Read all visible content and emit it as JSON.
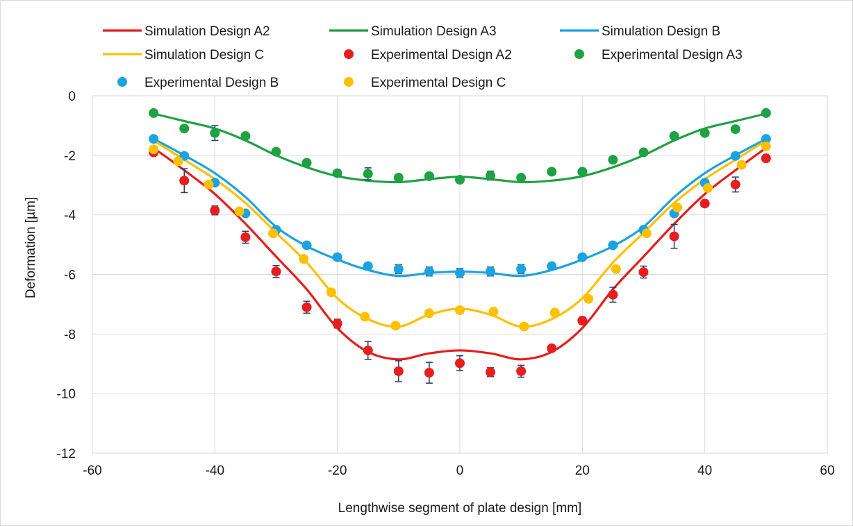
{
  "chart_data": {
    "type": "line",
    "xlabel": "Lengthwise segment of plate design [mm]",
    "ylabel": "Deformation [µm]",
    "xlim": [
      -60,
      60
    ],
    "ylim": [
      -12,
      0
    ],
    "x_ticks": [
      -60,
      -40,
      -20,
      0,
      20,
      40,
      60
    ],
    "y_ticks": [
      0,
      -2,
      -4,
      -6,
      -8,
      -10,
      -12
    ],
    "grid": true,
    "legend_position": "top",
    "series": [
      {
        "name": "Simulation Design A2",
        "kind": "line",
        "color": "#e81d1d",
        "x": [
          -50,
          -45,
          -40,
          -35,
          -30,
          -25,
          -20,
          -15,
          -10,
          -5,
          0,
          5,
          10,
          15,
          20,
          25,
          30,
          35,
          40,
          45,
          50
        ],
        "y": [
          -1.75,
          -2.5,
          -3.3,
          -4.3,
          -5.4,
          -6.5,
          -7.8,
          -8.6,
          -8.85,
          -8.65,
          -8.55,
          -8.65,
          -8.85,
          -8.6,
          -7.8,
          -6.5,
          -5.4,
          -4.3,
          -3.3,
          -2.5,
          -1.75
        ]
      },
      {
        "name": "Simulation Design A3",
        "kind": "line",
        "color": "#1fa144",
        "x": [
          -50,
          -45,
          -40,
          -35,
          -30,
          -25,
          -20,
          -15,
          -10,
          -5,
          0,
          5,
          10,
          15,
          20,
          25,
          30,
          35,
          40,
          45,
          50
        ],
        "y": [
          -0.6,
          -0.85,
          -1.1,
          -1.5,
          -2.0,
          -2.4,
          -2.7,
          -2.85,
          -2.9,
          -2.8,
          -2.72,
          -2.8,
          -2.9,
          -2.85,
          -2.7,
          -2.4,
          -2.0,
          -1.5,
          -1.1,
          -0.85,
          -0.6
        ]
      },
      {
        "name": "Simulation Design B",
        "kind": "line",
        "color": "#1aa3e0",
        "x": [
          -50,
          -45,
          -40,
          -35,
          -30,
          -25,
          -20,
          -15,
          -10,
          -5,
          0,
          5,
          10,
          15,
          20,
          25,
          30,
          35,
          40,
          45,
          50
        ],
        "y": [
          -1.45,
          -2.0,
          -2.6,
          -3.4,
          -4.4,
          -5.05,
          -5.5,
          -5.85,
          -6.05,
          -5.95,
          -5.9,
          -5.95,
          -6.05,
          -5.85,
          -5.5,
          -5.05,
          -4.4,
          -3.4,
          -2.6,
          -2.0,
          -1.45
        ]
      },
      {
        "name": "Simulation Design C",
        "kind": "line",
        "color": "#ffc000",
        "x": [
          -50,
          -45,
          -40,
          -35,
          -30,
          -25,
          -20,
          -15,
          -10,
          -5,
          0,
          5,
          10,
          15,
          20,
          25,
          30,
          35,
          40,
          45,
          50
        ],
        "y": [
          -1.5,
          -2.15,
          -2.8,
          -3.6,
          -4.6,
          -5.6,
          -6.8,
          -7.5,
          -7.75,
          -7.35,
          -7.15,
          -7.35,
          -7.75,
          -7.5,
          -6.8,
          -5.6,
          -4.6,
          -3.6,
          -2.8,
          -2.15,
          -1.5
        ]
      },
      {
        "name": "Experimental Design A2",
        "kind": "scatter",
        "color": "#e81d1d",
        "x": [
          -50,
          -45,
          -40,
          -35,
          -30,
          -25,
          -20,
          -15,
          -10,
          -5,
          0,
          5,
          10,
          15,
          20,
          25,
          30,
          35,
          40,
          45,
          50
        ],
        "y": [
          -1.9,
          -2.85,
          -3.85,
          -4.75,
          -5.9,
          -7.1,
          -7.65,
          -8.55,
          -9.25,
          -9.3,
          -8.98,
          -9.28,
          -9.25,
          -8.48,
          -7.55,
          -6.68,
          -5.92,
          -4.72,
          -3.62,
          -2.98,
          -2.1
        ],
        "err": [
          0.1,
          0.4,
          0.15,
          0.2,
          0.2,
          0.2,
          0.15,
          0.3,
          0.35,
          0.35,
          0.25,
          0.15,
          0.2,
          0.1,
          0.12,
          0.25,
          0.2,
          0.4,
          0.1,
          0.25,
          0.1
        ]
      },
      {
        "name": "Experimental Design A3",
        "kind": "scatter",
        "color": "#1fa144",
        "x": [
          -50,
          -45,
          -40,
          -35,
          -30,
          -25,
          -20,
          -15,
          -10,
          -5,
          0,
          5,
          10,
          15,
          20,
          25,
          30,
          35,
          40,
          45,
          50
        ],
        "y": [
          -0.58,
          -1.1,
          -1.25,
          -1.35,
          -1.88,
          -2.25,
          -2.6,
          -2.62,
          -2.75,
          -2.7,
          -2.82,
          -2.68,
          -2.75,
          -2.55,
          -2.55,
          -2.15,
          -1.9,
          -1.35,
          -1.25,
          -1.12,
          -0.58
        ],
        "err": [
          0.05,
          0.05,
          0.25,
          0.05,
          0.1,
          0.1,
          0.1,
          0.2,
          0.1,
          0.1,
          0.05,
          0.15,
          0.05,
          0.05,
          0.05,
          0.1,
          0.05,
          0.05,
          0.05,
          0.05,
          0.05
        ]
      },
      {
        "name": "Experimental Design B",
        "kind": "scatter",
        "color": "#1aa3e0",
        "x": [
          -50,
          -45,
          -40,
          -35,
          -30,
          -25,
          -20,
          -15,
          -10,
          -5,
          0,
          5,
          10,
          15,
          20,
          25,
          30,
          35,
          40,
          45,
          50
        ],
        "y": [
          -1.45,
          -2.02,
          -2.92,
          -3.95,
          -4.5,
          -5.02,
          -5.42,
          -5.72,
          -5.82,
          -5.9,
          -5.95,
          -5.9,
          -5.82,
          -5.72,
          -5.42,
          -5.02,
          -4.5,
          -3.95,
          -2.92,
          -2.02,
          -1.45
        ],
        "err": [
          0.05,
          0.05,
          0.1,
          0.1,
          0.1,
          0.1,
          0.1,
          0.1,
          0.15,
          0.15,
          0.15,
          0.15,
          0.15,
          0.1,
          0.1,
          0.1,
          0.1,
          0.1,
          0.1,
          0.05,
          0.05
        ]
      },
      {
        "name": "Experimental Design C",
        "kind": "scatter",
        "color": "#ffc000",
        "x": [
          -50,
          -46,
          -41,
          -36,
          -30.5,
          -25.5,
          -21,
          -15.5,
          -10.5,
          -5,
          0,
          5.5,
          10.5,
          15.5,
          21,
          25.5,
          30.5,
          35.5,
          40.5,
          46,
          50
        ],
        "y": [
          -1.8,
          -2.2,
          -2.98,
          -3.88,
          -4.62,
          -5.48,
          -6.6,
          -7.42,
          -7.72,
          -7.3,
          -7.2,
          -7.25,
          -7.75,
          -7.28,
          -6.82,
          -5.82,
          -4.62,
          -3.75,
          -3.1,
          -2.32,
          -1.7
        ],
        "err": [
          0.05,
          0.05,
          0.05,
          0.05,
          0.05,
          0.05,
          0.05,
          0.05,
          0.05,
          0.05,
          0.05,
          0.05,
          0.05,
          0.05,
          0.05,
          0.05,
          0.05,
          0.05,
          0.05,
          0.05,
          0.05
        ]
      }
    ],
    "error_bar_color": "#1f3a6e",
    "grid_color": "#d9d9d9"
  }
}
